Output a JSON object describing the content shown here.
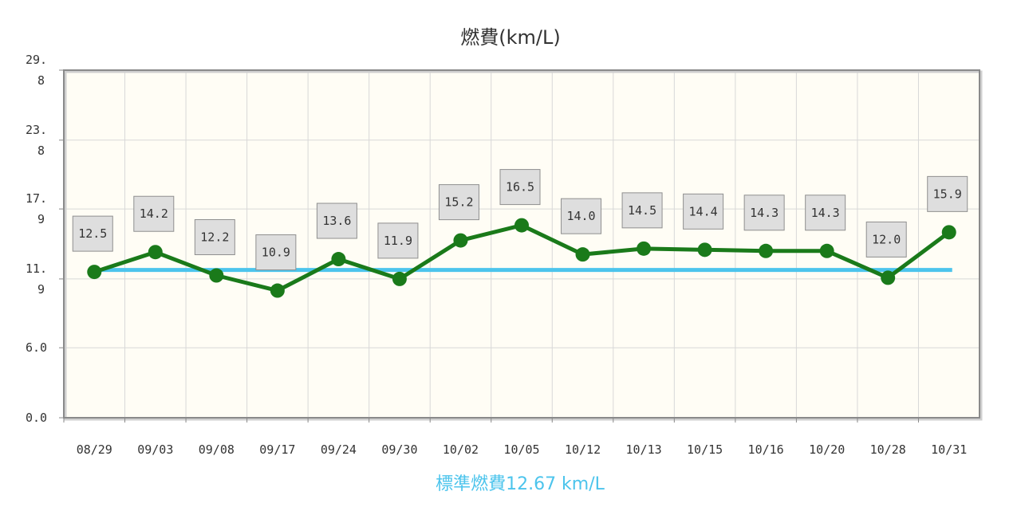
{
  "chart_data": {
    "type": "line",
    "title": "燃費(km/L)",
    "categories": [
      "08/29",
      "09/03",
      "09/08",
      "09/17",
      "09/24",
      "09/30",
      "10/02",
      "10/05",
      "10/12",
      "10/13",
      "10/15",
      "10/16",
      "10/20",
      "10/28",
      "10/31"
    ],
    "series": [
      {
        "values": [
          12.5,
          14.2,
          12.2,
          10.9,
          13.6,
          11.9,
          15.2,
          16.5,
          14.0,
          14.5,
          14.4,
          14.3,
          14.3,
          12.0,
          15.9
        ],
        "color": "#1a7a1a"
      }
    ],
    "reference_line": {
      "value": 12.67,
      "label": "標準燃費12.67 km/L",
      "color": "#4cc4ec"
    },
    "y_ticks": [
      {
        "value": 0.0,
        "lines": [
          "0.0"
        ]
      },
      {
        "value": 6.0,
        "lines": [
          "6.0"
        ]
      },
      {
        "value": 11.9,
        "lines": [
          "11.",
          "9"
        ]
      },
      {
        "value": 17.9,
        "lines": [
          "17.",
          "9"
        ]
      },
      {
        "value": 23.8,
        "lines": [
          "23.",
          "8"
        ]
      },
      {
        "value": 29.8,
        "lines": [
          "29.",
          "8"
        ]
      }
    ],
    "ylim": [
      0,
      29.8
    ],
    "grid": true,
    "plot_background": "#fffdf5",
    "grid_color": "#d8d8d8",
    "label_box_color": "#dedede"
  }
}
